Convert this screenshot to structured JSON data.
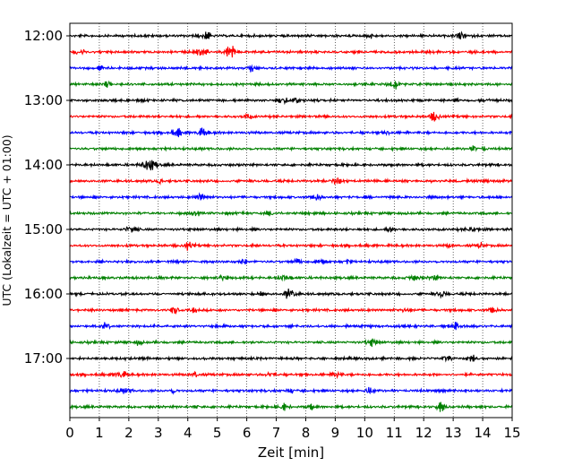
{
  "chart_data": {
    "type": "line",
    "title": "",
    "xlabel": "Zeit  [min]",
    "ylabel": "UTC (Lokalzeit = UTC + 01:00)",
    "xlim": [
      0,
      15
    ],
    "x_ticks": [
      "0",
      "1",
      "2",
      "3",
      "4",
      "5",
      "6",
      "7",
      "8",
      "9",
      "10",
      "11",
      "12",
      "13",
      "14",
      "15"
    ],
    "y_ticks": [
      "12:00",
      "13:00",
      "14:00",
      "15:00",
      "16:00",
      "17:00"
    ],
    "grid": "vertical dotted lines at each minute",
    "trace_colors": [
      "#000000",
      "#ff0000",
      "#0000ff",
      "#008000"
    ],
    "rows": [
      {
        "time": "12:00",
        "color": "#000000"
      },
      {
        "time": "12:15",
        "color": "#ff0000"
      },
      {
        "time": "12:30",
        "color": "#0000ff"
      },
      {
        "time": "12:45",
        "color": "#008000"
      },
      {
        "time": "13:00",
        "color": "#000000"
      },
      {
        "time": "13:15",
        "color": "#ff0000"
      },
      {
        "time": "13:30",
        "color": "#0000ff"
      },
      {
        "time": "13:45",
        "color": "#008000"
      },
      {
        "time": "14:00",
        "color": "#000000"
      },
      {
        "time": "14:15",
        "color": "#ff0000"
      },
      {
        "time": "14:30",
        "color": "#0000ff"
      },
      {
        "time": "14:45",
        "color": "#008000"
      },
      {
        "time": "15:00",
        "color": "#000000"
      },
      {
        "time": "15:15",
        "color": "#ff0000"
      },
      {
        "time": "15:30",
        "color": "#0000ff"
      },
      {
        "time": "15:45",
        "color": "#008000"
      },
      {
        "time": "16:00",
        "color": "#000000"
      },
      {
        "time": "16:15",
        "color": "#ff0000"
      },
      {
        "time": "16:30",
        "color": "#0000ff"
      },
      {
        "time": "16:45",
        "color": "#008000"
      },
      {
        "time": "17:00",
        "color": "#000000"
      },
      {
        "time": "17:15",
        "color": "#ff0000"
      },
      {
        "time": "17:30",
        "color": "#0000ff"
      },
      {
        "time": "17:45",
        "color": "#008000"
      }
    ]
  }
}
